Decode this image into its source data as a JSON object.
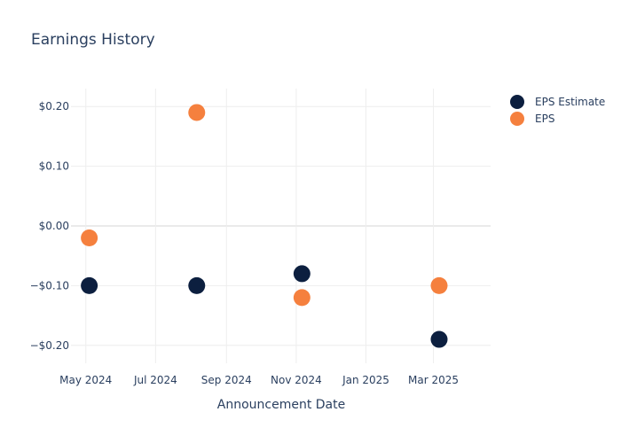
{
  "chart_data": {
    "type": "scatter",
    "title": "Earnings History",
    "xlabel": "Announcement Date",
    "ylabel": "",
    "ylim": [
      -0.23,
      0.23
    ],
    "xlim": [
      "2024-04-18",
      "2025-04-20"
    ],
    "x_ticks": [
      {
        "date": "2024-05-01",
        "label": "May 2024"
      },
      {
        "date": "2024-07-01",
        "label": "Jul 2024"
      },
      {
        "date": "2024-09-01",
        "label": "Sep 2024"
      },
      {
        "date": "2024-11-01",
        "label": "Nov 2024"
      },
      {
        "date": "2025-01-01",
        "label": "Jan 2025"
      },
      {
        "date": "2025-03-01",
        "label": "Mar 2025"
      }
    ],
    "y_ticks": [
      {
        "value": 0.2,
        "label": "$0.20"
      },
      {
        "value": 0.1,
        "label": "$0.10"
      },
      {
        "value": 0.0,
        "label": "$0.00"
      },
      {
        "value": -0.1,
        "label": "−$0.10"
      },
      {
        "value": -0.2,
        "label": "−$0.20"
      }
    ],
    "grid": true,
    "legend_position": "top-right",
    "series": [
      {
        "name": "EPS Estimate",
        "color": "#0c1f3f",
        "points": [
          {
            "x": "2024-05-04",
            "y": -0.1
          },
          {
            "x": "2024-08-06",
            "y": -0.1
          },
          {
            "x": "2024-11-06",
            "y": -0.08
          },
          {
            "x": "2025-03-06",
            "y": -0.19
          }
        ]
      },
      {
        "name": "EPS",
        "color": "#f5803e",
        "points": [
          {
            "x": "2024-05-04",
            "y": -0.02
          },
          {
            "x": "2024-08-06",
            "y": 0.19
          },
          {
            "x": "2024-11-06",
            "y": -0.12
          },
          {
            "x": "2025-03-06",
            "y": -0.1
          }
        ]
      }
    ]
  }
}
